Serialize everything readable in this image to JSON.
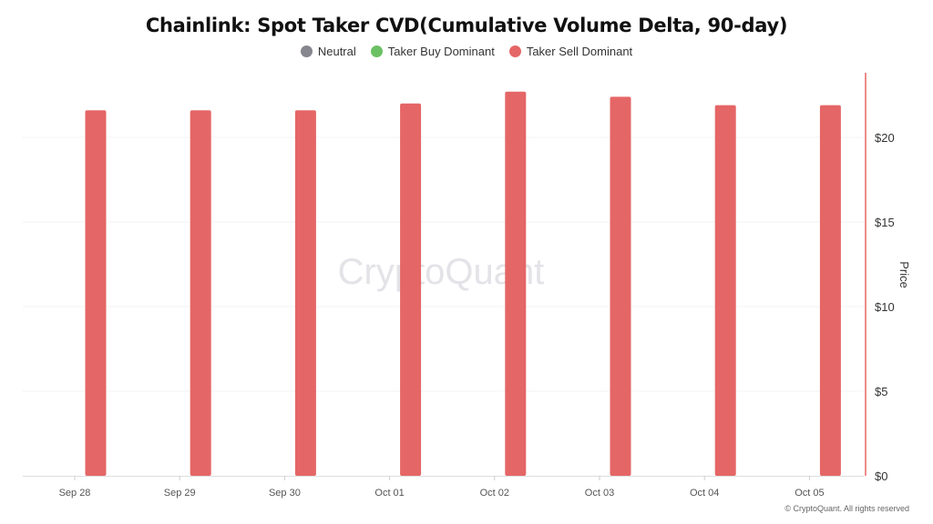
{
  "chart_data": {
    "type": "bar",
    "title": "Chainlink: Spot Taker CVD(Cumulative Volume Delta, 90-day)",
    "legend": [
      {
        "name": "Neutral",
        "color": "#85868e"
      },
      {
        "name": "Taker Buy Dominant",
        "color": "#6cc064"
      },
      {
        "name": "Taker Sell Dominant",
        "color": "#e56666"
      }
    ],
    "legend_placement": "top-center",
    "categories": [
      "Sep 28",
      "Sep 29",
      "Sep 30",
      "Oct 01",
      "Oct 02",
      "Oct 03",
      "Oct 04",
      "Oct 05"
    ],
    "series": [
      {
        "name": "Taker Sell Dominant",
        "values": [
          21.6,
          21.6,
          21.6,
          22.0,
          22.7,
          22.4,
          21.9,
          21.9
        ],
        "color": "#e56666"
      }
    ],
    "ylabel": "Price",
    "y_axis_side": "right",
    "ylim": [
      0,
      24
    ],
    "yticks": [
      0,
      5,
      10,
      15,
      20
    ],
    "ytick_labels": [
      "$0",
      "$5",
      "$10",
      "$15",
      "$20"
    ],
    "grid": true,
    "watermark": "CryptoQuant"
  },
  "footer": {
    "copyright": "© CryptoQuant. All rights reserved"
  }
}
